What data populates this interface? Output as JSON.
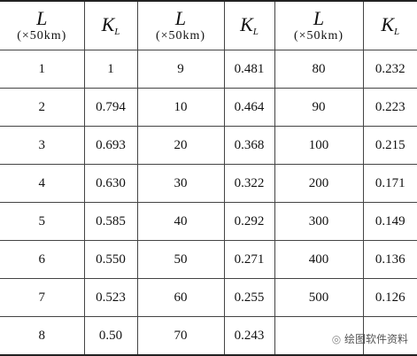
{
  "table": {
    "header": [
      {
        "symbol": "L",
        "unit": "(×50km)"
      },
      {
        "symbol": "K",
        "subscript": "L"
      },
      {
        "symbol": "L",
        "unit": "(×50km)"
      },
      {
        "symbol": "K",
        "subscript": "L"
      },
      {
        "symbol": "L",
        "unit": "(×50km)"
      },
      {
        "symbol": "K",
        "subscript": "L"
      }
    ],
    "rows": [
      [
        "1",
        "1",
        "9",
        "0.481",
        "80",
        "0.232"
      ],
      [
        "2",
        "0.794",
        "10",
        "0.464",
        "90",
        "0.223"
      ],
      [
        "3",
        "0.693",
        "20",
        "0.368",
        "100",
        "0.215"
      ],
      [
        "4",
        "0.630",
        "30",
        "0.322",
        "200",
        "0.171"
      ],
      [
        "5",
        "0.585",
        "40",
        "0.292",
        "300",
        "0.149"
      ],
      [
        "6",
        "0.550",
        "50",
        "0.271",
        "400",
        "0.136"
      ],
      [
        "7",
        "0.523",
        "60",
        "0.255",
        "500",
        "0.126"
      ],
      [
        "8",
        "0.50",
        "70",
        "0.243",
        null,
        null
      ]
    ]
  },
  "watermark": "绘图软件资料"
}
